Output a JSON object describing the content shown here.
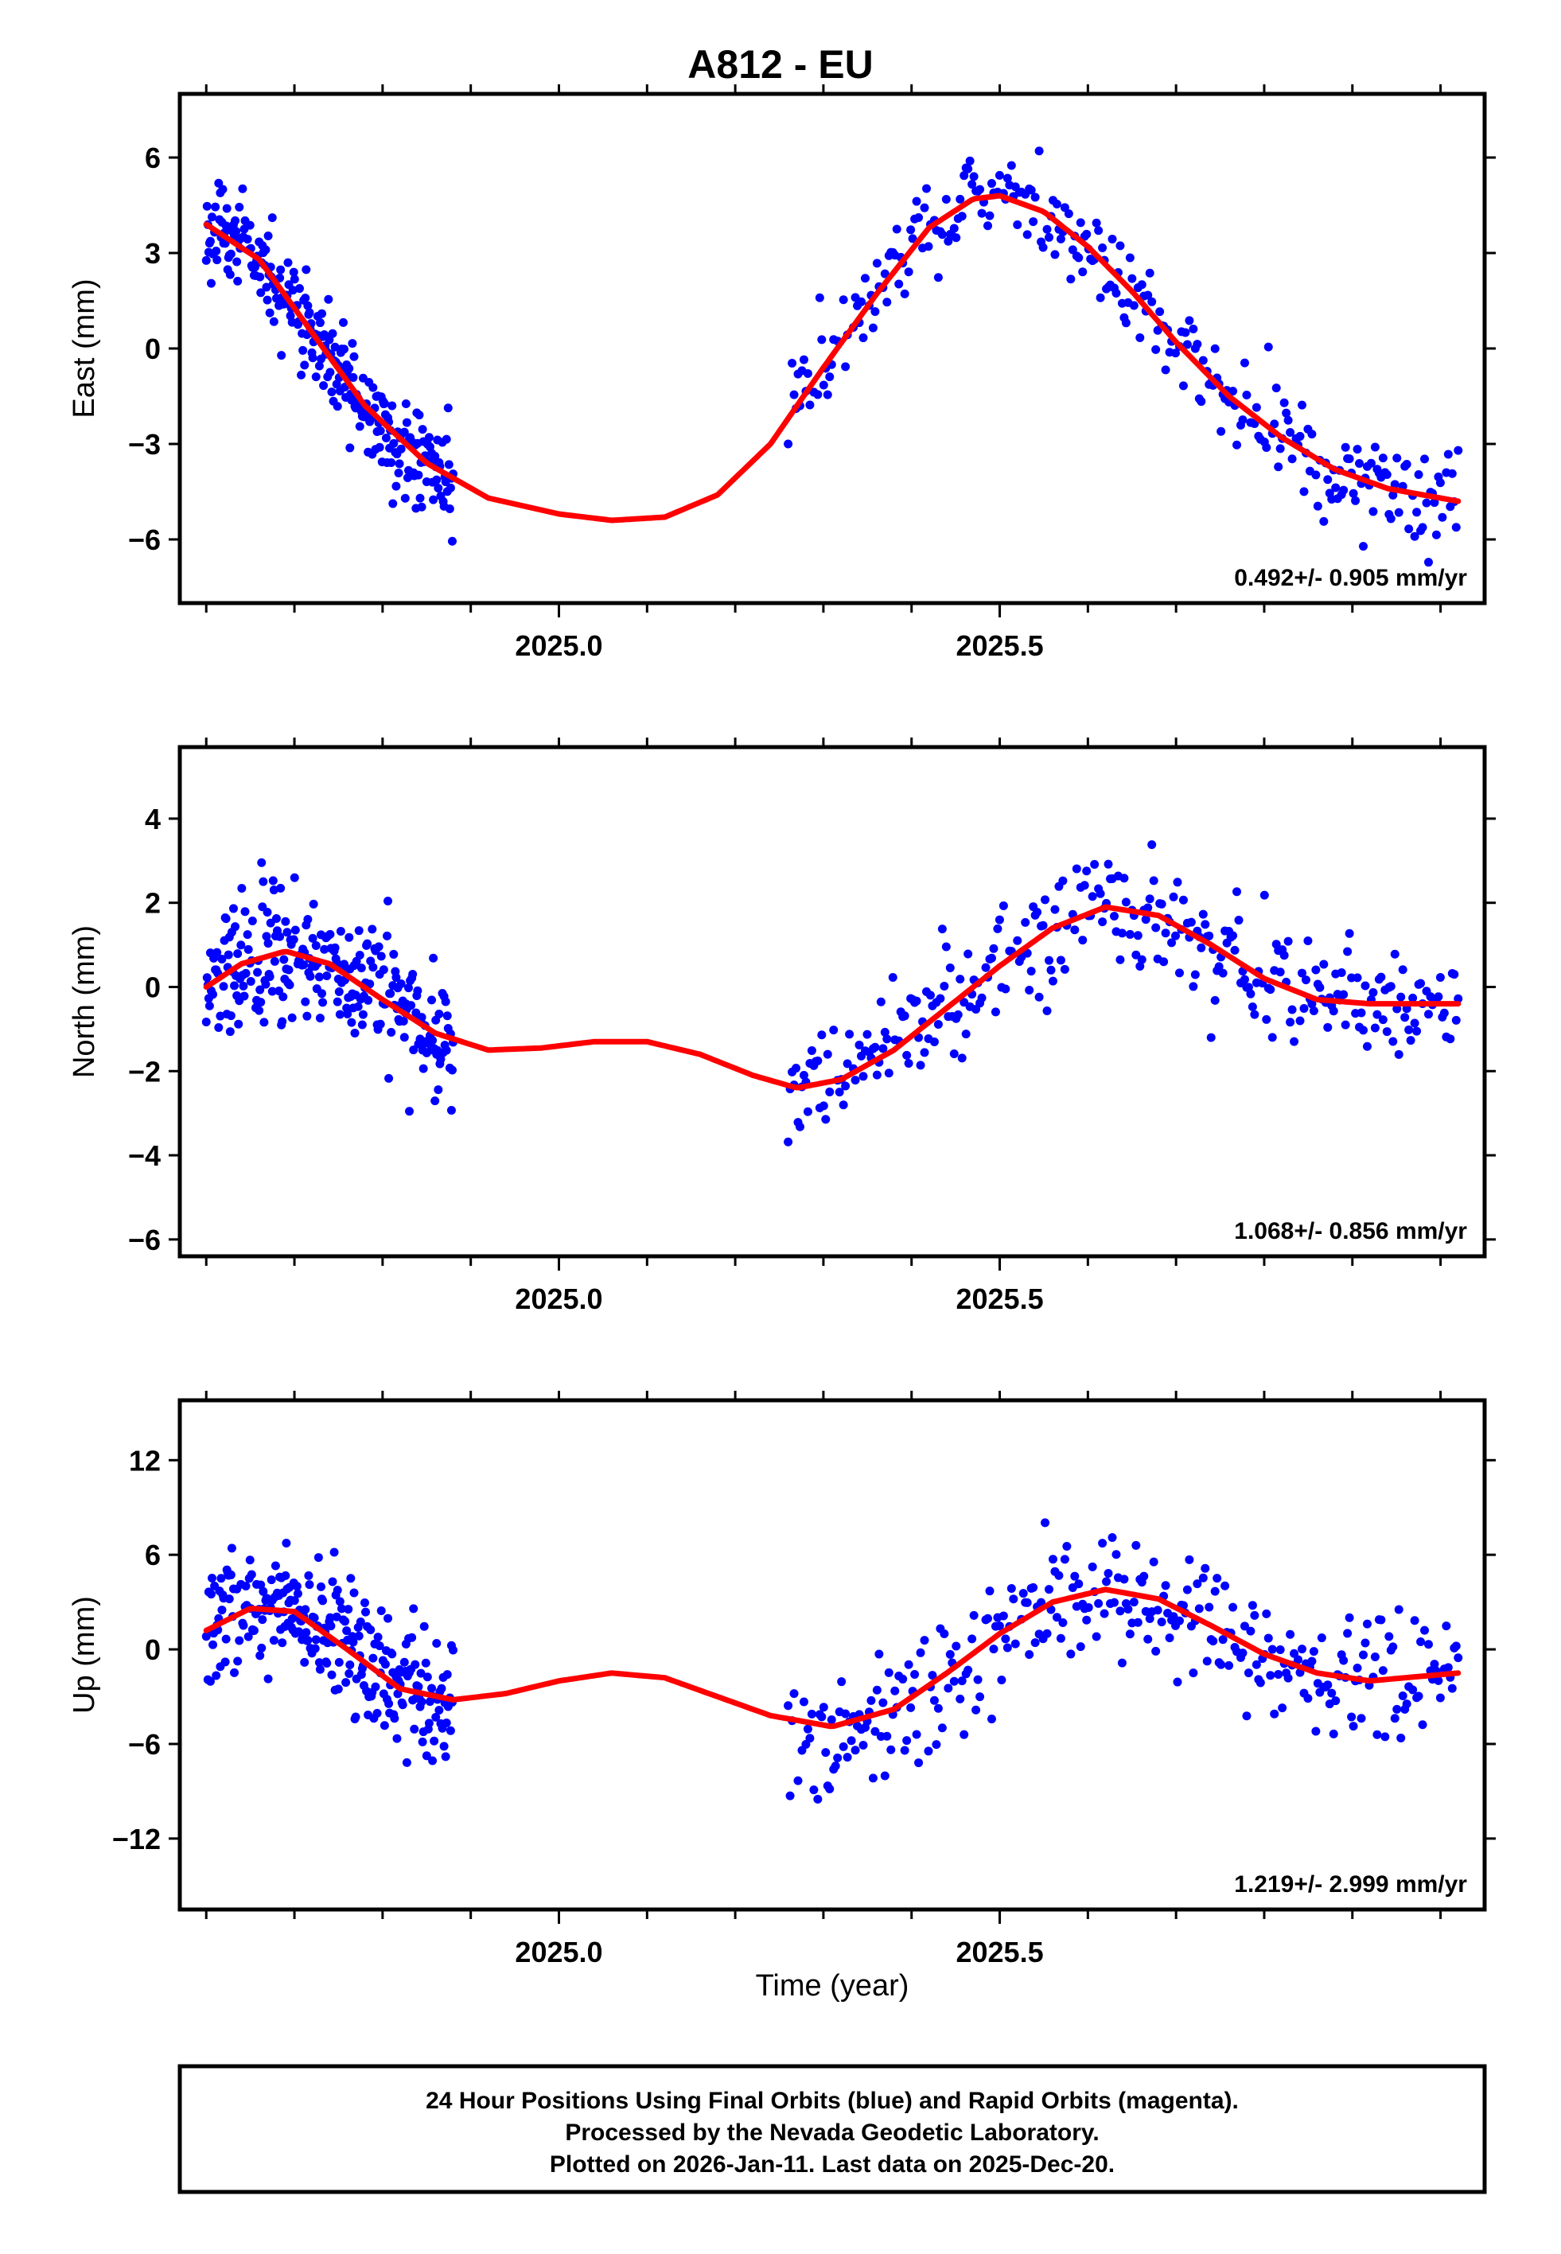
{
  "chart_data": {
    "type": "scatter",
    "title": "A812 - EU",
    "xlabel": "Time (year)",
    "xlim": [
      2024.57,
      2026.05
    ],
    "x_ticks": [
      "2025.0",
      "2025.5"
    ],
    "colors": {
      "points": "#0000ff",
      "model": "#ff0000",
      "frame": "#000000"
    },
    "panels": [
      {
        "name": "east",
        "ylabel": "East (mm)",
        "ylim": [
          -8.0,
          8.0
        ],
        "yticks": [
          "6",
          "3",
          "0",
          "-3",
          "-6"
        ],
        "rate": "0.492+/- 0.905 mm/yr",
        "seed": 11,
        "noise": 1.25,
        "segments": [
          [
            2024.6,
            2024.88,
            300
          ],
          [
            2025.26,
            2026.02,
            340
          ]
        ],
        "model": [
          [
            2024.6,
            3.9
          ],
          [
            2024.66,
            2.8
          ],
          [
            2024.72,
            0.5
          ],
          [
            2024.78,
            -1.8
          ],
          [
            2024.85,
            -3.6
          ],
          [
            2024.92,
            -4.7
          ],
          [
            2025.0,
            -5.2
          ],
          [
            2025.06,
            -5.4
          ],
          [
            2025.12,
            -5.3
          ],
          [
            2025.18,
            -4.6
          ],
          [
            2025.24,
            -3.0
          ],
          [
            2025.3,
            -0.6
          ],
          [
            2025.36,
            1.7
          ],
          [
            2025.42,
            3.8
          ],
          [
            2025.47,
            4.7
          ],
          [
            2025.5,
            4.8
          ],
          [
            2025.55,
            4.3
          ],
          [
            2025.6,
            3.2
          ],
          [
            2025.65,
            1.8
          ],
          [
            2025.7,
            0.2
          ],
          [
            2025.76,
            -1.5
          ],
          [
            2025.82,
            -2.8
          ],
          [
            2025.88,
            -3.8
          ],
          [
            2025.94,
            -4.4
          ],
          [
            2026.02,
            -4.8
          ]
        ]
      },
      {
        "name": "north",
        "ylabel": "North (mm)",
        "ylim": [
          -6.4,
          5.7
        ],
        "yticks": [
          "4",
          "2",
          "0",
          "-2",
          "-4",
          "-6"
        ],
        "rate": "1.068+/- 0.856 mm/yr",
        "seed": 23,
        "noise": 1.2,
        "segments": [
          [
            2024.6,
            2024.88,
            300
          ],
          [
            2025.26,
            2026.02,
            340
          ]
        ],
        "model": [
          [
            2024.6,
            0.0
          ],
          [
            2024.64,
            0.55
          ],
          [
            2024.69,
            0.85
          ],
          [
            2024.74,
            0.55
          ],
          [
            2024.8,
            -0.3
          ],
          [
            2024.86,
            -1.1
          ],
          [
            2024.92,
            -1.5
          ],
          [
            2024.98,
            -1.45
          ],
          [
            2025.04,
            -1.3
          ],
          [
            2025.1,
            -1.3
          ],
          [
            2025.16,
            -1.6
          ],
          [
            2025.22,
            -2.1
          ],
          [
            2025.27,
            -2.4
          ],
          [
            2025.32,
            -2.2
          ],
          [
            2025.38,
            -1.5
          ],
          [
            2025.44,
            -0.5
          ],
          [
            2025.5,
            0.5
          ],
          [
            2025.56,
            1.4
          ],
          [
            2025.62,
            1.9
          ],
          [
            2025.68,
            1.7
          ],
          [
            2025.74,
            1.0
          ],
          [
            2025.8,
            0.2
          ],
          [
            2025.86,
            -0.3
          ],
          [
            2025.92,
            -0.4
          ],
          [
            2026.02,
            -0.4
          ]
        ]
      },
      {
        "name": "up",
        "ylabel": "Up (mm)",
        "ylim": [
          -16.5,
          15.8
        ],
        "yticks": [
          "12",
          "6",
          "0",
          "-6",
          "-12"
        ],
        "rate": "1.219+/- 2.999 mm/yr",
        "seed": 37,
        "noise": 3.2,
        "segments": [
          [
            2024.6,
            2024.88,
            300
          ],
          [
            2025.26,
            2026.02,
            340
          ]
        ],
        "model": [
          [
            2024.6,
            1.2
          ],
          [
            2024.65,
            2.6
          ],
          [
            2024.7,
            2.4
          ],
          [
            2024.76,
            0.0
          ],
          [
            2024.82,
            -2.5
          ],
          [
            2024.88,
            -3.2
          ],
          [
            2024.94,
            -2.8
          ],
          [
            2025.0,
            -2.0
          ],
          [
            2025.06,
            -1.5
          ],
          [
            2025.12,
            -1.8
          ],
          [
            2025.18,
            -3.0
          ],
          [
            2025.24,
            -4.2
          ],
          [
            2025.31,
            -4.9
          ],
          [
            2025.38,
            -3.8
          ],
          [
            2025.44,
            -1.5
          ],
          [
            2025.5,
            1.0
          ],
          [
            2025.56,
            3.0
          ],
          [
            2025.62,
            3.8
          ],
          [
            2025.68,
            3.2
          ],
          [
            2025.74,
            1.5
          ],
          [
            2025.8,
            -0.3
          ],
          [
            2025.86,
            -1.5
          ],
          [
            2025.92,
            -2.0
          ],
          [
            2026.02,
            -1.5
          ]
        ]
      }
    ]
  },
  "footer": {
    "line1": "24 Hour Positions Using Final Orbits (blue) and Rapid Orbits (magenta).",
    "line2": "Processed by the Nevada Geodetic Laboratory.",
    "line3": "Plotted on 2026-Jan-11. Last data on 2025-Dec-20."
  }
}
